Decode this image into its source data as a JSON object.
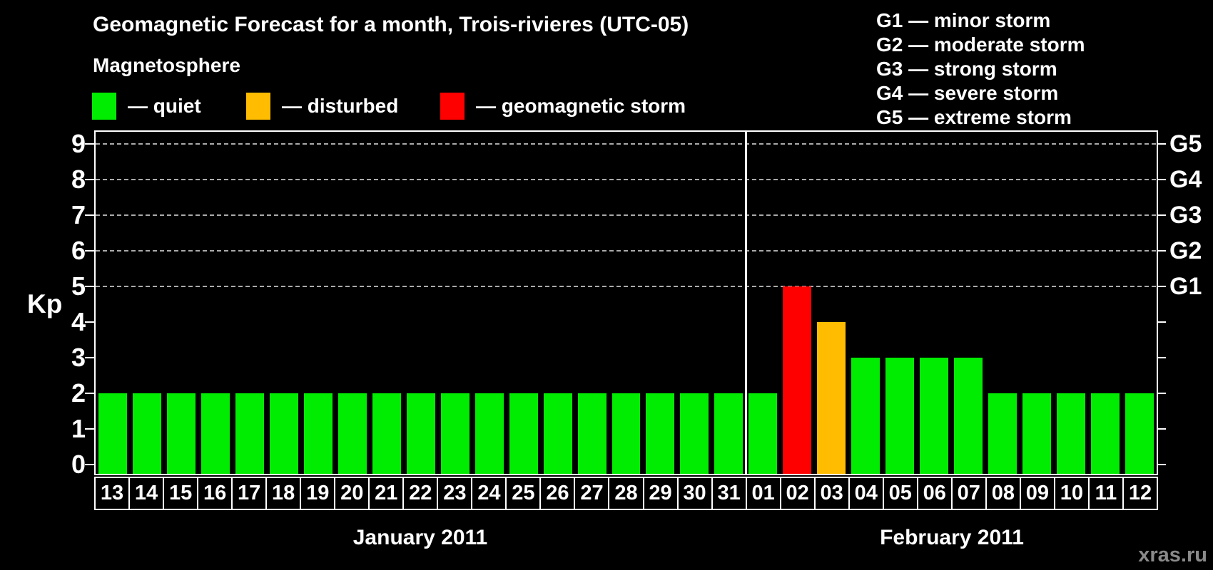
{
  "title": "Geomagnetic Forecast for a month, Trois-rivieres (UTC-05)",
  "subtitle": "Magnetosphere",
  "legend": {
    "items": [
      {
        "level": "quiet",
        "label": "— quiet"
      },
      {
        "level": "disturbed",
        "label": "— disturbed"
      },
      {
        "level": "storm",
        "label": "— geomagnetic storm"
      }
    ]
  },
  "g_scale_legend": [
    "G1 — minor storm",
    "G2 — moderate storm",
    "G3 — strong storm",
    "G4 — severe storm",
    "G5 — extreme storm"
  ],
  "watermark": "xras.ru",
  "chart_data": {
    "type": "bar",
    "title": "Geomagnetic Forecast for a month, Trois-rivieres (UTC-05)",
    "xlabel": "",
    "ylabel": "Kp",
    "ylim": [
      0,
      9
    ],
    "grid": "dashed horizontal lines at Kp 5-9 only",
    "gridlines_kp": [
      5,
      6,
      7,
      8,
      9
    ],
    "yticks_left": [
      {
        "kp": 0,
        "label": "0"
      },
      {
        "kp": 1,
        "label": "1"
      },
      {
        "kp": 2,
        "label": "2"
      },
      {
        "kp": 3,
        "label": "3"
      },
      {
        "kp": 4,
        "label": "4"
      },
      {
        "kp": 5,
        "label": "5"
      },
      {
        "kp": 6,
        "label": "6"
      },
      {
        "kp": 7,
        "label": "7"
      },
      {
        "kp": 8,
        "label": "8"
      },
      {
        "kp": 9,
        "label": "9"
      }
    ],
    "right_axis_labels": [
      {
        "kp": 5,
        "label": "G1"
      },
      {
        "kp": 6,
        "label": "G2"
      },
      {
        "kp": 7,
        "label": "G3"
      },
      {
        "kp": 8,
        "label": "G4"
      },
      {
        "kp": 9,
        "label": "G5"
      }
    ],
    "months": [
      {
        "label": "January 2011",
        "days_count": 19
      },
      {
        "label": "February 2011",
        "days_count": 12
      }
    ],
    "bars": [
      {
        "day": "13",
        "kp": 2,
        "level": "quiet"
      },
      {
        "day": "14",
        "kp": 2,
        "level": "quiet"
      },
      {
        "day": "15",
        "kp": 2,
        "level": "quiet"
      },
      {
        "day": "16",
        "kp": 2,
        "level": "quiet"
      },
      {
        "day": "17",
        "kp": 2,
        "level": "quiet"
      },
      {
        "day": "18",
        "kp": 2,
        "level": "quiet"
      },
      {
        "day": "19",
        "kp": 2,
        "level": "quiet"
      },
      {
        "day": "20",
        "kp": 2,
        "level": "quiet"
      },
      {
        "day": "21",
        "kp": 2,
        "level": "quiet"
      },
      {
        "day": "22",
        "kp": 2,
        "level": "quiet"
      },
      {
        "day": "23",
        "kp": 2,
        "level": "quiet"
      },
      {
        "day": "24",
        "kp": 2,
        "level": "quiet"
      },
      {
        "day": "25",
        "kp": 2,
        "level": "quiet"
      },
      {
        "day": "26",
        "kp": 2,
        "level": "quiet"
      },
      {
        "day": "27",
        "kp": 2,
        "level": "quiet"
      },
      {
        "day": "28",
        "kp": 2,
        "level": "quiet"
      },
      {
        "day": "29",
        "kp": 2,
        "level": "quiet"
      },
      {
        "day": "30",
        "kp": 2,
        "level": "quiet"
      },
      {
        "day": "31",
        "kp": 2,
        "level": "quiet"
      },
      {
        "day": "01",
        "kp": 2,
        "level": "quiet"
      },
      {
        "day": "02",
        "kp": 5,
        "level": "storm"
      },
      {
        "day": "03",
        "kp": 4,
        "level": "disturbed"
      },
      {
        "day": "04",
        "kp": 3,
        "level": "quiet"
      },
      {
        "day": "05",
        "kp": 3,
        "level": "quiet"
      },
      {
        "day": "06",
        "kp": 3,
        "level": "quiet"
      },
      {
        "day": "07",
        "kp": 3,
        "level": "quiet"
      },
      {
        "day": "08",
        "kp": 2,
        "level": "quiet"
      },
      {
        "day": "09",
        "kp": 2,
        "level": "quiet"
      },
      {
        "day": "10",
        "kp": 2,
        "level": "quiet"
      },
      {
        "day": "11",
        "kp": 2,
        "level": "quiet"
      },
      {
        "day": "12",
        "kp": 2,
        "level": "quiet"
      }
    ],
    "colors": {
      "quiet": "#00ec00",
      "disturbed": "#ffbc00",
      "storm": "#ff0000",
      "grid": "#aaaaaa",
      "axis": "#ffffff",
      "watermark": "#8a8a8a",
      "background": "#000000"
    }
  }
}
